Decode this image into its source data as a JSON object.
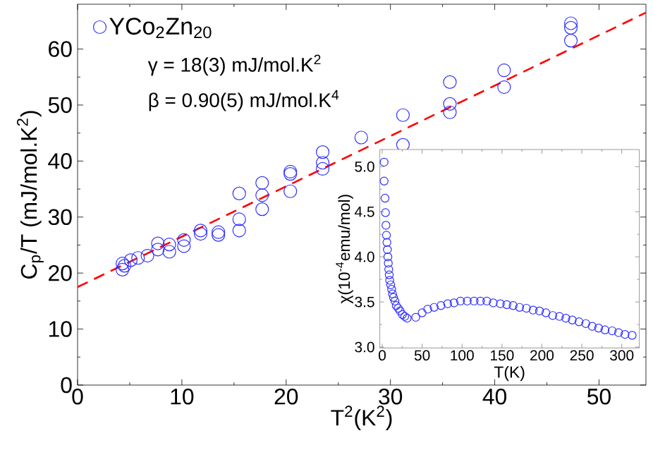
{
  "chart_data": [
    {
      "type": "scatter",
      "xlabel": "T$^{2}$(K$^{2}$)",
      "ylabel": "C$_{p}$/T (mJ/mol.K$^{2}$)",
      "xlim": [
        0,
        54.5
      ],
      "ylim": [
        0,
        68
      ],
      "xticks": [
        0,
        10,
        20,
        30,
        40,
        50
      ],
      "yticks": [
        0,
        10,
        20,
        30,
        40,
        50,
        60
      ],
      "legend": "top left",
      "marker": "circle",
      "annotations": [
        "γ = 18(3) mJ/mol.K$^{2}$",
        "β = 0.90(5) mJ/mol.K$^{4}$"
      ],
      "series": [
        {
          "name": "YCo$_{2}$Zn$_{20}$",
          "color": "#3333ff",
          "x": [
            4.3,
            4.3,
            4.5,
            5.1,
            5.8,
            6.7,
            7.7,
            7.7,
            8.8,
            8.8,
            10.2,
            10.2,
            11.8,
            11.8,
            13.5,
            13.5,
            15.5,
            15.5,
            15.5,
            17.7,
            17.7,
            17.7,
            20.4,
            20.4,
            20.4,
            23.5,
            23.5,
            23.5,
            27.2,
            31.2,
            31.2,
            35.7,
            35.7,
            35.7,
            40.9,
            40.9,
            47.3,
            47.3,
            47.3
          ],
          "values": [
            20.6,
            21.7,
            21.3,
            22.3,
            22.7,
            23.1,
            24.2,
            25.3,
            23.8,
            25.1,
            24.8,
            25.9,
            27.0,
            27.6,
            26.8,
            27.3,
            27.6,
            29.6,
            34.2,
            31.4,
            33.9,
            36.1,
            34.6,
            37.7,
            38.1,
            38.6,
            39.7,
            41.6,
            44.2,
            42.9,
            48.2,
            48.7,
            50.2,
            54.1,
            53.2,
            56.2,
            61.5,
            63.8,
            64.6
          ]
        },
        {
          "type": "line",
          "color": "#ff0000",
          "line_style": "dashed",
          "marker": "none",
          "x": [
            0,
            54.5
          ],
          "values": [
            17.5,
            66.5
          ]
        }
      ]
    },
    {
      "type": "scatter",
      "xlabel": "T(K)",
      "ylabel": "χ(10$^{-4}$emu/mol)",
      "xlim": [
        -3,
        322
      ],
      "ylim": [
        2.99,
        5.19
      ],
      "xticks": [
        0,
        50,
        100,
        150,
        200,
        250,
        300
      ],
      "yticks": [
        {
          "value": 3,
          "label": "3.0"
        },
        {
          "value": 3.5,
          "label": "3.5"
        },
        {
          "value": 4,
          "label": "4.0"
        },
        {
          "value": 4.5,
          "label": "4.5"
        },
        {
          "value": 5,
          "label": "5.0"
        }
      ],
      "marker": "circle",
      "series": [
        {
          "color": "#3333ff",
          "x": [
            2.4,
            2.4,
            3.5,
            4.1,
            4.7,
            5.3,
            5.9,
            6.5,
            7.1,
            7.6,
            8.2,
            8.8,
            9.4,
            10.6,
            11.8,
            12.9,
            14.1,
            15.9,
            17.6,
            20,
            22.4,
            25.3,
            28.2,
            31.2,
            42,
            50,
            57,
            65,
            73.5,
            82,
            90,
            98,
            106.5,
            115,
            123,
            131,
            139,
            148,
            156,
            164,
            172,
            180.6,
            189,
            197,
            205,
            213.5,
            222,
            230,
            238,
            246.5,
            255,
            263,
            271,
            279,
            288,
            296,
            304,
            313
          ],
          "values": [
            5.05,
            4.84,
            4.65,
            4.49,
            4.35,
            4.24,
            4.16,
            4.08,
            4.0,
            3.93,
            3.86,
            3.8,
            3.74,
            3.69,
            3.64,
            3.59,
            3.55,
            3.51,
            3.46,
            3.43,
            3.4,
            3.36,
            3.34,
            3.32,
            3.33,
            3.38,
            3.42,
            3.44,
            3.46,
            3.48,
            3.49,
            3.51,
            3.51,
            3.51,
            3.51,
            3.51,
            3.49,
            3.48,
            3.47,
            3.46,
            3.44,
            3.43,
            3.41,
            3.4,
            3.38,
            3.35,
            3.34,
            3.32,
            3.3,
            3.28,
            3.26,
            3.23,
            3.21,
            3.19,
            3.18,
            3.16,
            3.14,
            3.13
          ]
        }
      ]
    }
  ]
}
